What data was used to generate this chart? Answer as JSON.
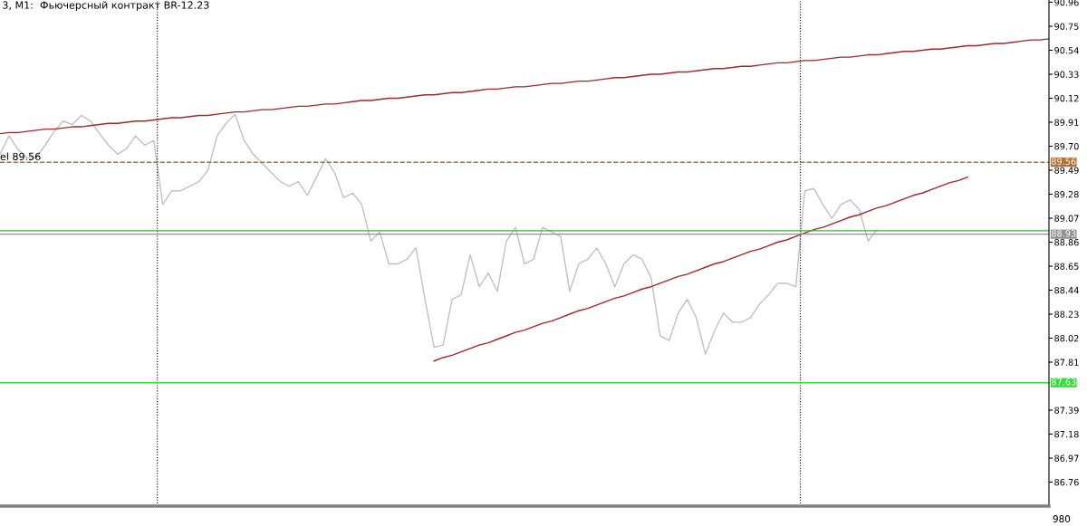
{
  "chart_data": {
    "type": "line",
    "title": "3, M1:  Фьючерсный контракт BR-12.23",
    "categories": [
      null,
      null,
      null,
      null,
      null,
      null,
      null,
      null,
      null,
      null,
      null,
      null,
      null,
      null,
      null,
      null,
      null,
      null,
      null,
      null,
      null,
      null,
      null,
      null,
      null,
      null,
      null,
      null,
      null,
      null,
      null,
      null,
      null,
      null,
      null,
      null,
      null,
      null,
      null,
      null,
      null,
      null,
      null,
      null,
      null,
      null,
      null,
      null,
      null,
      null,
      null,
      null,
      null,
      null,
      null,
      null,
      null,
      null,
      null,
      null,
      null,
      null,
      null,
      null,
      null,
      null,
      null,
      null,
      null,
      null,
      null,
      null,
      null,
      null,
      null,
      null,
      null,
      null,
      null,
      null,
      null,
      null,
      null,
      null,
      null,
      null,
      null,
      null,
      null,
      null,
      null,
      null,
      null,
      null,
      null,
      null,
      null,
      null,
      null,
      null,
      null,
      null,
      null,
      null,
      null,
      null,
      null,
      null,
      null,
      null,
      null,
      null,
      null,
      null,
      null,
      null,
      null
    ],
    "series": [
      {
        "color": "#c0c0c0",
        "values": [
          89.63,
          89.79,
          89.67,
          89.6,
          89.6,
          89.71,
          89.83,
          89.92,
          89.89,
          89.97,
          89.92,
          89.81,
          89.71,
          89.63,
          89.68,
          89.79,
          89.71,
          89.75,
          89.19,
          89.31,
          89.31,
          89.35,
          89.39,
          89.49,
          89.79,
          89.9,
          89.98,
          89.75,
          89.63,
          89.55,
          89.47,
          89.39,
          89.35,
          89.39,
          89.27,
          89.43,
          89.59,
          89.47,
          89.25,
          89.29,
          89.19,
          88.87,
          88.95,
          88.67,
          88.67,
          88.71,
          88.81,
          88.36,
          87.94,
          87.96,
          88.36,
          88.4,
          88.75,
          88.47,
          88.59,
          88.43,
          88.87,
          88.99,
          88.67,
          88.71,
          88.99,
          88.95,
          88.91,
          88.43,
          88.67,
          88.71,
          88.81,
          88.67,
          88.47,
          88.67,
          88.75,
          88.71,
          88.55,
          88.04,
          88.0,
          88.24,
          88.36,
          88.2,
          87.88,
          88.08,
          88.24,
          88.16,
          88.16,
          88.2,
          88.32,
          88.4,
          88.5,
          88.5,
          88.47,
          89.31,
          89.33,
          89.19,
          89.07,
          89.19,
          89.23,
          89.15,
          88.87,
          88.97,
          null,
          null,
          null,
          null,
          null,
          null,
          null,
          null,
          null,
          null,
          null,
          null,
          null,
          null,
          null,
          null,
          null,
          null,
          null
        ]
      },
      {
        "type": "line",
        "color": "#a0282d",
        "values": [
          89.81,
          89.82,
          89.82,
          89.83,
          89.84,
          89.85,
          89.85,
          89.86,
          89.87,
          89.87,
          89.88,
          89.89,
          89.9,
          89.9,
          89.91,
          89.92,
          89.92,
          89.93,
          89.94,
          89.95,
          89.95,
          89.96,
          89.97,
          89.97,
          89.98,
          89.99,
          90.0,
          90.0,
          90.01,
          90.02,
          90.02,
          90.03,
          90.04,
          90.05,
          90.05,
          90.06,
          90.07,
          90.07,
          90.08,
          90.09,
          90.1,
          90.1,
          90.11,
          90.12,
          90.12,
          90.13,
          90.14,
          90.15,
          90.15,
          90.16,
          90.17,
          90.17,
          90.18,
          90.19,
          90.2,
          90.2,
          90.21,
          90.22,
          90.22,
          90.23,
          90.24,
          90.25,
          90.25,
          90.26,
          90.27,
          90.27,
          90.28,
          90.29,
          90.3,
          90.3,
          90.31,
          90.32,
          90.33,
          90.33,
          90.34,
          90.35,
          90.35,
          90.36,
          90.37,
          90.38,
          90.38,
          90.39,
          90.4,
          90.4,
          90.41,
          90.42,
          90.43,
          90.43,
          90.44,
          90.45,
          90.45,
          90.46,
          90.47,
          90.48,
          90.48,
          90.49,
          90.5,
          90.5,
          90.51,
          90.52,
          90.53,
          90.53,
          90.54,
          90.55,
          90.55,
          90.56,
          90.57,
          90.58,
          90.58,
          90.59,
          90.6,
          90.6,
          90.61,
          90.62,
          90.63,
          90.63,
          90.64
        ]
      },
      {
        "type": "line",
        "color": "#a0282d",
        "values": [
          null,
          null,
          null,
          null,
          null,
          null,
          null,
          null,
          null,
          null,
          null,
          null,
          null,
          null,
          null,
          null,
          null,
          null,
          null,
          null,
          null,
          null,
          null,
          null,
          null,
          null,
          null,
          null,
          null,
          null,
          null,
          null,
          null,
          null,
          null,
          null,
          null,
          null,
          null,
          null,
          null,
          null,
          null,
          null,
          null,
          null,
          null,
          null,
          87.82,
          87.85,
          87.87,
          87.9,
          87.93,
          87.96,
          87.98,
          88.01,
          88.04,
          88.07,
          88.09,
          88.12,
          88.15,
          88.17,
          88.2,
          88.23,
          88.26,
          88.28,
          88.31,
          88.34,
          88.37,
          88.39,
          88.42,
          88.45,
          88.47,
          88.5,
          88.53,
          88.56,
          88.58,
          88.61,
          88.64,
          88.67,
          88.69,
          88.72,
          88.75,
          88.78,
          88.8,
          88.83,
          88.86,
          88.88,
          88.91,
          88.94,
          88.97,
          88.99,
          89.02,
          89.05,
          89.08,
          89.1,
          89.13,
          89.16,
          89.18,
          89.21,
          89.24,
          89.27,
          89.29,
          89.32,
          89.35,
          89.38,
          89.4,
          89.43,
          null,
          null,
          null,
          null,
          null,
          null,
          null,
          null,
          null
        ]
      }
    ],
    "ylim": [
      86.55,
      90.98
    ],
    "yticks": [
      90.96,
      90.75,
      90.54,
      90.33,
      90.12,
      89.91,
      {
        "value": 89.7,
        "label": "89.70"
      },
      89.49,
      89.28,
      89.07,
      88.86,
      88.65,
      88.44,
      88.23,
      88.02,
      87.81,
      87.39,
      87.18,
      86.97,
      86.76
    ],
    "ref_lines": [
      {
        "axis": "y",
        "value": 89.56,
        "label": "89.56",
        "color": "#b0703a",
        "line_style": "dashed"
      },
      {
        "axis": "y",
        "value": 88.96,
        "color": "#3cb043",
        "line_style": "solid"
      },
      {
        "axis": "y",
        "value": 88.93,
        "label": "88.93",
        "color": "#909090",
        "line_style": "solid"
      },
      {
        "axis": "y",
        "value": 87.63,
        "label": "87.63",
        "color": "#33dd33",
        "line_style": "solid"
      }
    ],
    "annotations": [
      "el 89.56",
      "980"
    ],
    "grid": false,
    "legend": false
  }
}
